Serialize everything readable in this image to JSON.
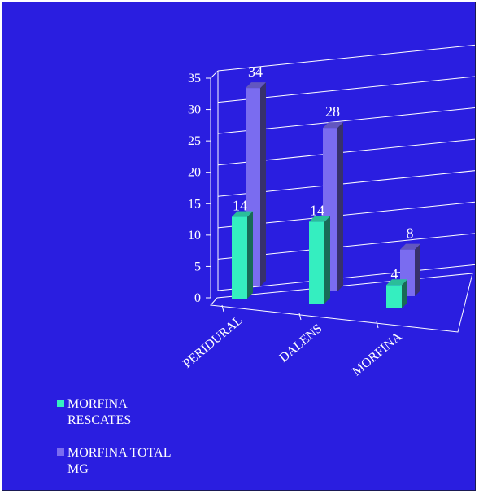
{
  "colors": {
    "background": "#2a1ee0",
    "series_front": "#35eec0",
    "series_back": "#7a6cf0",
    "text": "#ffffff"
  },
  "chart_data": {
    "type": "bar",
    "title": "",
    "xlabel": "",
    "ylabel": "",
    "categories": [
      "PERIDURAL",
      "DALENS",
      "MORFINA"
    ],
    "series": [
      {
        "name": "MORFINA RESCATES",
        "values": [
          14,
          14,
          4
        ]
      },
      {
        "name": "MORFINA TOTAL MG",
        "values": [
          34,
          28,
          8
        ]
      }
    ],
    "ylim": [
      0,
      35
    ],
    "yticks": [
      "0",
      "5",
      "10",
      "15",
      "20",
      "25",
      "30",
      "35"
    ],
    "grid": true,
    "legend": "bottom-left",
    "style": "3d-clustered"
  }
}
